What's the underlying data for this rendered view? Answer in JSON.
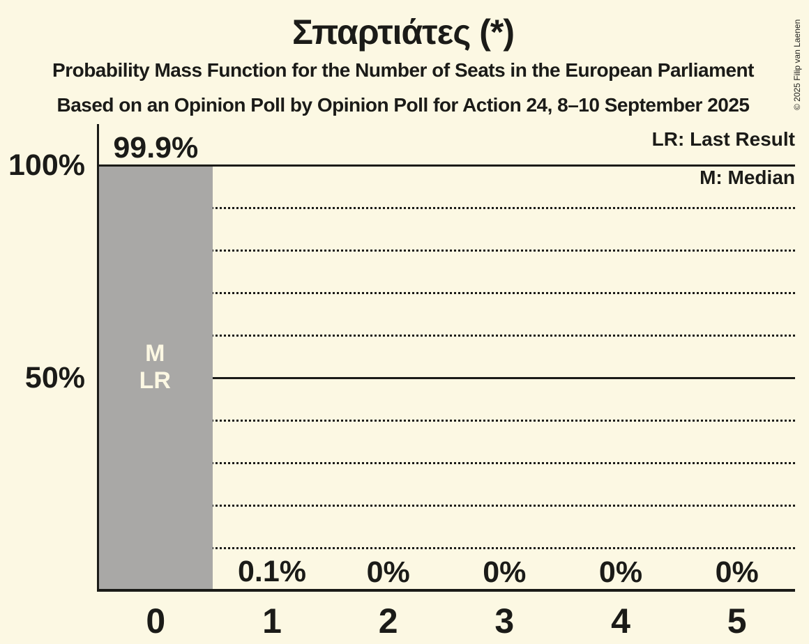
{
  "page": {
    "background": "#fcf8e3"
  },
  "copyright": "© 2025 Filip van Laenen",
  "header": {
    "title": "Σπαρτιάτες (*)",
    "subtitle_line1": "Probability Mass Function for the Number of Seats in the European Parliament",
    "subtitle_line2": "Based on an Opinion Poll by Opinion Poll for Action 24, 8–10 September 2025"
  },
  "legend": {
    "last_result": "LR: Last Result",
    "median": "M: Median"
  },
  "chart_data": {
    "type": "bar",
    "title": "Σπαρτιάτες (*)",
    "categories": [
      "0",
      "1",
      "2",
      "3",
      "4",
      "5"
    ],
    "values": [
      99.9,
      0.1,
      0,
      0,
      0,
      0
    ],
    "value_labels": [
      "99.9%",
      "0.1%",
      "0%",
      "0%",
      "0%",
      "0%"
    ],
    "xlabel": "",
    "ylabel": "",
    "ylim": [
      0,
      100
    ],
    "yticks": [
      {
        "value": 100,
        "label": "100%"
      },
      {
        "value": 50,
        "label": "50%"
      }
    ],
    "gridlines": {
      "dotted_percent": [
        10,
        20,
        30,
        40,
        60,
        70,
        80,
        90
      ],
      "solid_percent": [
        50,
        100
      ]
    },
    "legend_entries": [
      "LR: Last Result",
      "M: Median"
    ],
    "legend_position": "top-right",
    "annotations": [
      {
        "category": "0",
        "lines": [
          "M",
          "LR"
        ]
      }
    ],
    "colors": {
      "background": "#fcf8e3",
      "bar": "#a9a8a6",
      "text": "#1b1b18",
      "bar_annotation_text": "#fcf8e3"
    }
  }
}
